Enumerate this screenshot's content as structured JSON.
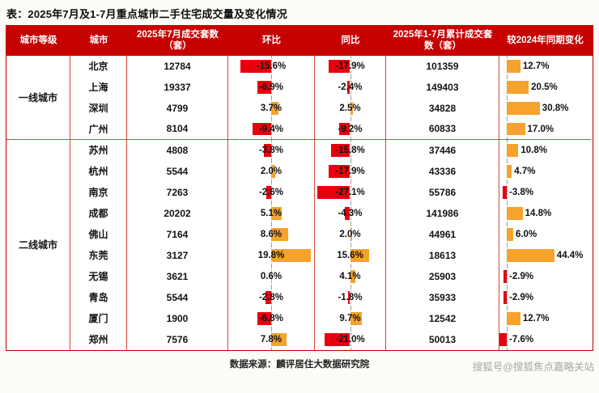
{
  "page": {
    "title": "表：2025年7月及1-7月重点城市二手住宅成交量及变化情况",
    "source": "数据来源：麟评居住大数据研究院",
    "watermark": "搜狐号@搜狐焦点嘉略关站"
  },
  "colors": {
    "header_bg": "#c70100",
    "header_text": "#ffffff",
    "grid_line": "#d5473b",
    "outer_border": "#c00000",
    "negative_bar": "#e8000d",
    "positive_bar": "#f5a32c",
    "watermark_text": "#a6a6a6"
  },
  "table": {
    "headers": [
      "城市等级",
      "城市",
      "2025年7月成交套数（套）",
      "环比",
      "同比",
      "2025年1-7月累计成交套数（套）",
      "较2024年同期变化"
    ],
    "tier_groups": [
      {
        "label": "一线城市",
        "span": 4
      },
      {
        "label": "二线城市",
        "span": 10
      }
    ]
  },
  "chart_data": {
    "type": "table",
    "title": "2025年7月及1-7月重点城市二手住宅成交量及变化情况",
    "columns": [
      "城市等级",
      "城市",
      "2025年7月成交套数（套）",
      "环比",
      "同比",
      "2025年1-7月累计成交套数（套）",
      "较2024年同期变化"
    ],
    "bar_columns": {
      "mom": {
        "header": "环比",
        "axis_pct": 50,
        "max_abs": 19.8,
        "max_width_pct": 46,
        "label": "center"
      },
      "yoy": {
        "header": "同比",
        "axis_pct": 50,
        "max_abs": 27.1,
        "max_width_pct": 46,
        "label": "center"
      },
      "ytd": {
        "header": "较2024年同期变化",
        "axis_pct": 8,
        "max_abs": 44.4,
        "max_width_pct": 52,
        "label": "end"
      }
    },
    "rows": [
      {
        "tier": "一线城市",
        "city": "北京",
        "jul_units": 12784,
        "mom_pct": -15.6,
        "yoy_pct": -17.9,
        "cum_units": 101359,
        "vs2024_pct": 12.7
      },
      {
        "tier": "一线城市",
        "city": "上海",
        "jul_units": 19337,
        "mom_pct": -6.9,
        "yoy_pct": -2.4,
        "cum_units": 149403,
        "vs2024_pct": 20.5
      },
      {
        "tier": "一线城市",
        "city": "深圳",
        "jul_units": 4799,
        "mom_pct": 3.7,
        "yoy_pct": 2.5,
        "cum_units": 34828,
        "vs2024_pct": 30.8
      },
      {
        "tier": "一线城市",
        "city": "广州",
        "jul_units": 8104,
        "mom_pct": -9.4,
        "yoy_pct": -9.2,
        "cum_units": 60833,
        "vs2024_pct": 17.0
      },
      {
        "tier": "二线城市",
        "city": "苏州",
        "jul_units": 4808,
        "mom_pct": -3.8,
        "yoy_pct": -15.8,
        "cum_units": 37446,
        "vs2024_pct": 10.8
      },
      {
        "tier": "二线城市",
        "city": "杭州",
        "jul_units": 5544,
        "mom_pct": 2.0,
        "yoy_pct": -17.9,
        "cum_units": 43336,
        "vs2024_pct": 4.7
      },
      {
        "tier": "二线城市",
        "city": "南京",
        "jul_units": 7263,
        "mom_pct": -2.6,
        "yoy_pct": -27.1,
        "cum_units": 55786,
        "vs2024_pct": -3.8
      },
      {
        "tier": "二线城市",
        "city": "成都",
        "jul_units": 20202,
        "mom_pct": 5.1,
        "yoy_pct": -4.3,
        "cum_units": 141986,
        "vs2024_pct": 14.8
      },
      {
        "tier": "二线城市",
        "city": "佛山",
        "jul_units": 7164,
        "mom_pct": 8.6,
        "yoy_pct": 2.0,
        "cum_units": 44961,
        "vs2024_pct": 6.0
      },
      {
        "tier": "二线城市",
        "city": "东莞",
        "jul_units": 3127,
        "mom_pct": 19.8,
        "yoy_pct": 15.6,
        "cum_units": 18613,
        "vs2024_pct": 44.4
      },
      {
        "tier": "二线城市",
        "city": "无锡",
        "jul_units": 3621,
        "mom_pct": 0.6,
        "yoy_pct": 4.1,
        "cum_units": 25903,
        "vs2024_pct": -2.9
      },
      {
        "tier": "二线城市",
        "city": "青岛",
        "jul_units": 5544,
        "mom_pct": -2.8,
        "yoy_pct": -1.8,
        "cum_units": 35933,
        "vs2024_pct": -2.9
      },
      {
        "tier": "二线城市",
        "city": "厦门",
        "jul_units": 1900,
        "mom_pct": -6.8,
        "yoy_pct": 9.7,
        "cum_units": 12542,
        "vs2024_pct": 12.7
      },
      {
        "tier": "二线城市",
        "city": "郑州",
        "jul_units": 7576,
        "mom_pct": 7.8,
        "yoy_pct": -21.0,
        "cum_units": 50013,
        "vs2024_pct": -7.6
      }
    ]
  }
}
